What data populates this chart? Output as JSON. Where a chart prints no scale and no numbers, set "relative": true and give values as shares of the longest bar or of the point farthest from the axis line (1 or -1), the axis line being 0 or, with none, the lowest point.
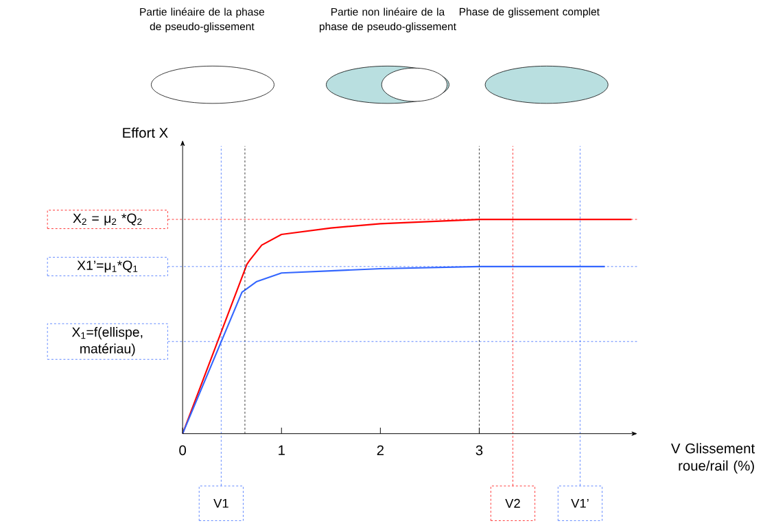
{
  "chart_data": {
    "type": "line",
    "relative": true,
    "xlabel": "V Glissement roue/rail (%)",
    "annotations": [
      "Partie linéaire de la phase de pseudo-glissement",
      "Partie non linéaire de la phase de pseudo-glissement",
      "Phase de glissement complet",
      "Effort X"
    ],
    "series": [
      {
        "color": "#ff0000",
        "x": [
          0,
          0.65,
          0.68,
          0.8,
          1.0,
          1.5,
          2.0,
          2.5,
          3.0,
          4.54
        ],
        "values": [
          0,
          0.79,
          0.81,
          0.88,
          0.93,
          0.96,
          0.98,
          0.99,
          1,
          1
        ]
      },
      {
        "color": "#3366ff",
        "x": [
          0,
          0.6,
          0.75,
          1.0,
          1.5,
          2.0,
          3.0,
          4.27
        ],
        "values": [
          0,
          0.66,
          0.71,
          0.75,
          0.76,
          0.77,
          0.78,
          0.78
        ]
      }
    ],
    "xlim": [
      0,
      4.6
    ],
    "xticks": [
      0,
      1,
      2,
      3
    ],
    "ref_lines": [
      {
        "axis": "x",
        "value": 0.63,
        "color": "#000000",
        "line_style": "dashed"
      },
      {
        "axis": "x",
        "value": 3,
        "color": "#000000",
        "line_style": "dashed"
      },
      {
        "axis": "y",
        "value": 1,
        "label": "X$_{2}$ = μ$_{2}$ *Q$_{2}$",
        "color": "#ff0000",
        "line_style": "dashed"
      },
      {
        "axis": "y",
        "value": 0.78,
        "label": "X1’=μ$_{1}$*Q$_{1}$",
        "color": "#3366ff",
        "line_style": "dashed"
      },
      {
        "axis": "y",
        "value": 0.43,
        "label": "X$_{1}$=f(ellispe, matériau)",
        "color": "#3366ff",
        "line_style": "dashed"
      },
      {
        "axis": "x",
        "value": 0.39,
        "label": "V1",
        "color": "#3366ff",
        "line_style": "dashed"
      },
      {
        "axis": "x",
        "value": 3.34,
        "label": "V2",
        "color": "#ff0000",
        "line_style": "dashed"
      },
      {
        "axis": "x",
        "value": 4.02,
        "label": "V1’",
        "color": "#3366ff",
        "line_style": "dashed"
      }
    ],
    "line_style": "solid"
  }
}
